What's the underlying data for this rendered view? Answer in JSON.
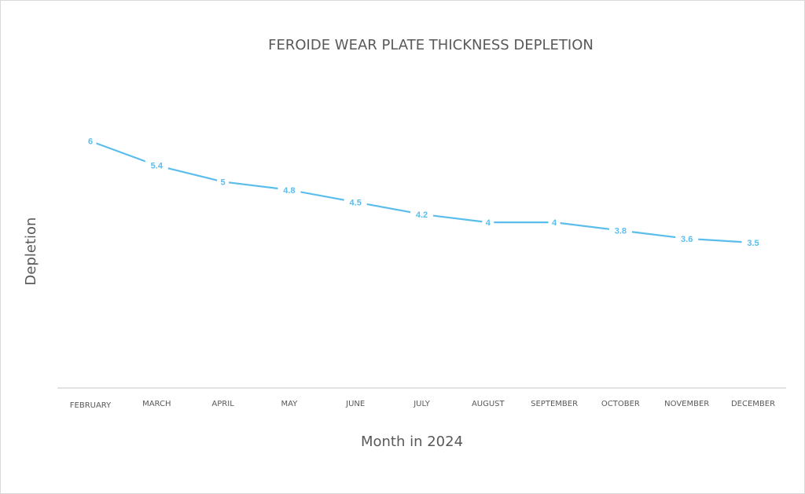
{
  "chart_data": {
    "type": "line",
    "title": "FEROIDE WEAR PLATE THICKNESS DEPLETION",
    "xlabel": "Month in 2024",
    "ylabel": "Depletion",
    "categories": [
      "FEBRUARY",
      "MARCH",
      "APRIL",
      "MAY",
      "JUNE",
      "JULY",
      "AUGUST",
      "SEPTEMBER",
      "OCTOBER",
      "NOVEMBER",
      "DECEMBER"
    ],
    "series": [
      {
        "values": [
          6,
          5.4,
          5,
          4.8,
          4.5,
          4.2,
          4,
          4,
          3.8,
          3.6,
          3.5
        ]
      }
    ],
    "data_labels": [
      "6",
      "5.4",
      "5",
      "4.8",
      "4.5",
      "4.2",
      "4",
      "4",
      "3.8",
      "3.6",
      "3.5"
    ],
    "ylim": [
      0,
      7
    ],
    "grid": false,
    "legend": "none",
    "colors": {
      "line": "#5bbdec",
      "text": "#595959",
      "axis": "#d9d9d9"
    }
  }
}
